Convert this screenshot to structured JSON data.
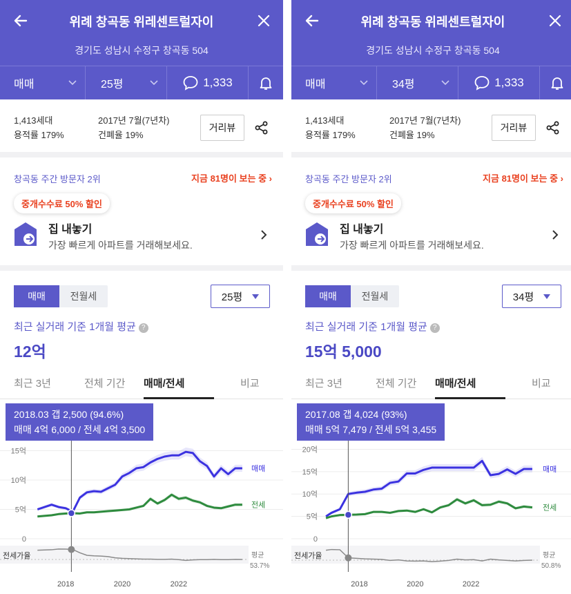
{
  "panels": [
    {
      "title": "위례 창곡동 위레센트럴자이",
      "address": "경기도 성남시 수정구 창곡동 504",
      "filter": {
        "deal_type": "매매",
        "size": "25평",
        "comments": "1,333"
      },
      "info": {
        "households": "1,413세대",
        "far": "용적률 179%",
        "built": "2017년 7월(7년차)",
        "bcr": "건폐율 19%",
        "street_view": "거리뷰"
      },
      "visitors": {
        "rank": "창곡동 주간 방문자 2위",
        "live": "지금 81명이 보는 중"
      },
      "promo_badge": "중개수수료 50% 할인",
      "sell": {
        "title": "집 내놓기",
        "subtitle": "가장 빠르게 아파트를 거래해보세요."
      },
      "toggle": {
        "sale": "매매",
        "rent": "전월세"
      },
      "size_select": "25평",
      "avg": {
        "label": "최근 실거래 기준 1개월 평균",
        "price": "12억"
      },
      "tabs": [
        "최근 3년",
        "전체 기간",
        "매매/전세",
        "비교"
      ],
      "tooltip": {
        "line1": "2018.03  갭 2,500 (94.6%)",
        "line2": "매매 4억 6,000 / 전세 4억 3,500"
      },
      "chart_data": {
        "type": "line",
        "x": [
          2017.0,
          2017.5,
          2017.75,
          2018.0,
          2018.25,
          2018.5,
          2018.75,
          2019.0,
          2019.25,
          2019.5,
          2019.75,
          2020.0,
          2020.25,
          2020.5,
          2020.75,
          2021.0,
          2021.25,
          2021.5,
          2021.75,
          2022.0,
          2022.25,
          2022.5,
          2022.75,
          2023.0,
          2023.25,
          2023.5,
          2023.75,
          2024.0,
          2024.25
        ],
        "series": [
          {
            "name": "매매",
            "values": [
              5.0,
              5.8,
              5.4,
              5.2,
              4.6,
              7.0,
              7.9,
              8.1,
              8.0,
              8.6,
              9.2,
              10.6,
              11.2,
              12.0,
              12.2,
              13.0,
              13.6,
              14.0,
              14.2,
              14.2,
              14.8,
              14.6,
              13.2,
              12.4,
              10.6,
              12.0,
              11.0,
              12.0,
              12.0
            ]
          },
          {
            "name": "전세",
            "values": [
              3.8,
              4.0,
              4.2,
              4.3,
              4.35,
              4.3,
              4.5,
              4.5,
              4.6,
              4.7,
              4.8,
              4.9,
              5.0,
              5.3,
              5.6,
              6.8,
              6.0,
              6.6,
              7.5,
              6.8,
              7.0,
              6.5,
              6.2,
              5.6,
              5.3,
              5.2,
              5.5,
              5.8,
              5.8
            ]
          }
        ],
        "ratio": [
          90,
          92,
          95,
          94.6,
          93,
          80,
          70,
          68,
          67,
          65,
          60,
          58,
          57,
          56,
          55,
          55,
          54,
          54,
          55,
          53,
          50,
          52,
          53,
          53,
          54,
          53,
          53,
          54,
          53.7
        ],
        "ylabel_ticks": [
          "15억",
          "10억",
          "5억",
          "0"
        ],
        "y_ticks": [
          15,
          10,
          5,
          0
        ],
        "ylim": [
          0,
          16
        ],
        "xlim": [
          2016.7,
          2024.35
        ],
        "x_ticks": [
          2018,
          2020,
          2022
        ],
        "x_tick_labels": [
          "2018",
          "2020",
          "2022"
        ],
        "ratio_label": "전세가율",
        "avg_label": "평균",
        "avg_value": "53.7%",
        "cursor_x": 2018.2
      }
    },
    {
      "title": "위례 창곡동 위레센트럴자이",
      "address": "경기도 성남시 수정구 창곡동 504",
      "filter": {
        "deal_type": "매매",
        "size": "34평",
        "comments": "1,333"
      },
      "info": {
        "households": "1,413세대",
        "far": "용적률 179%",
        "built": "2017년 7월(7년차)",
        "bcr": "건폐율 19%",
        "street_view": "거리뷰"
      },
      "visitors": {
        "rank": "창곡동 주간 방문자 2위",
        "live": "지금 81명이 보는 중"
      },
      "promo_badge": "중개수수료 50% 할인",
      "sell": {
        "title": "집 내놓기",
        "subtitle": "가장 빠르게 아파트를 거래해보세요."
      },
      "toggle": {
        "sale": "매매",
        "rent": "전월세"
      },
      "size_select": "34평",
      "avg": {
        "label": "최근 실거래 기준 1개월 평균",
        "price": "15억 5,000"
      },
      "tabs": [
        "최근 3년",
        "전체 기간",
        "매매/전세",
        "비교"
      ],
      "tooltip": {
        "line1": "2017.08  갭 4,024 (93%)",
        "line2": "매매 5억 7,479 / 전세 5억 3,455"
      },
      "chart_data": {
        "type": "line",
        "x": [
          2016.8,
          2017.0,
          2017.3,
          2017.6,
          2017.9,
          2018.2,
          2018.5,
          2018.8,
          2019.1,
          2019.4,
          2019.7,
          2020.0,
          2020.3,
          2020.6,
          2020.9,
          2021.2,
          2021.5,
          2021.8,
          2022.1,
          2022.4,
          2022.7,
          2023.0,
          2023.3,
          2023.6,
          2023.9,
          2024.2
        ],
        "series": [
          {
            "name": "매매",
            "values": [
              5.0,
              5.8,
              6.6,
              10.0,
              10.3,
              10.5,
              11.0,
              11.2,
              12.5,
              12.8,
              14.6,
              14.6,
              15.4,
              15.9,
              15.9,
              15.9,
              15.9,
              15.9,
              15.9,
              17.4,
              14.2,
              14.5,
              15.5,
              14.5,
              15.6,
              15.6
            ]
          },
          {
            "name": "전세",
            "values": [
              4.6,
              5.0,
              5.3,
              5.35,
              5.4,
              5.5,
              6.0,
              6.0,
              5.8,
              6.2,
              6.3,
              6.0,
              6.6,
              5.9,
              7.0,
              7.5,
              8.8,
              7.9,
              8.6,
              7.5,
              7.6,
              8.3,
              7.9,
              6.8,
              7.2,
              7.0
            ]
          }
        ],
        "ratio": [
          90,
          93,
          92,
          60,
          58,
          56,
          55,
          54,
          50,
          52,
          48,
          47,
          48,
          45,
          47,
          50,
          55,
          52,
          53,
          48,
          55,
          52,
          50,
          48,
          50,
          50.8
        ],
        "ylabel_ticks": [
          "20억",
          "15억",
          "10억",
          "5억",
          "0"
        ],
        "y_ticks": [
          20,
          15,
          10,
          5,
          0
        ],
        "ylim": [
          0,
          21
        ],
        "xlim": [
          2016.6,
          2024.35
        ],
        "x_ticks": [
          2018,
          2020,
          2022
        ],
        "x_tick_labels": [
          "2018",
          "2020",
          "2022"
        ],
        "ratio_label": "전세가율",
        "avg_label": "평균",
        "avg_value": "50.8%",
        "cursor_x": 2017.6
      }
    }
  ],
  "colors": {
    "brand": "#5b59c9",
    "sale_line": "#3b32e0",
    "rent_line": "#2e8b3e",
    "ratio_line": "#8a8a8a",
    "hot": "#e9401f"
  },
  "icons": [
    "back-arrow-icon",
    "close-icon",
    "chevron-down-icon",
    "comment-icon",
    "bell-icon",
    "share-icon",
    "house-upload-icon",
    "chevron-right-icon",
    "caret-down-icon",
    "help-icon"
  ]
}
